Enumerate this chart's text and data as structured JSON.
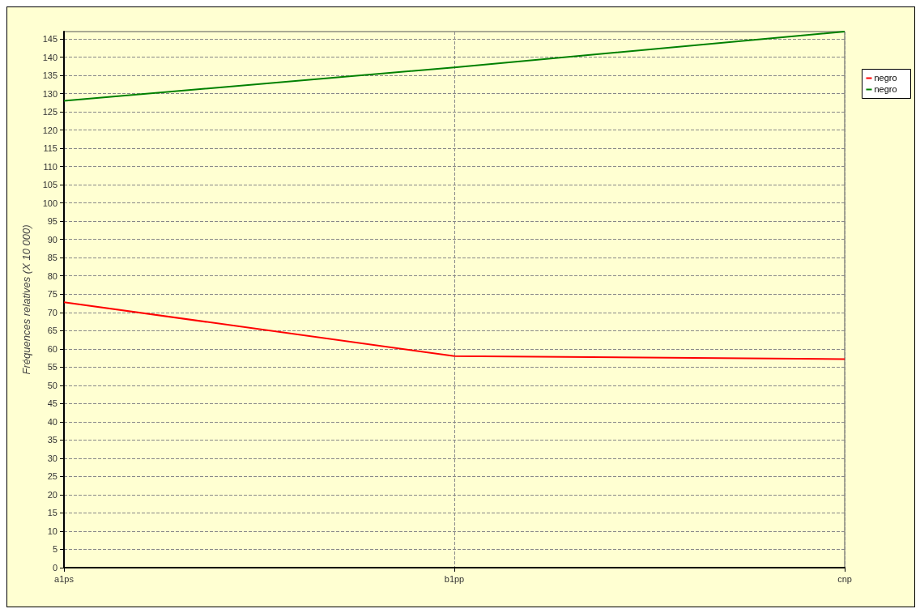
{
  "chart_data": {
    "type": "line",
    "ylabel": "Fréquences relatives (X 10 000)",
    "categories": [
      "a1ps",
      "b1pp",
      "cnp"
    ],
    "series": [
      {
        "name": "negro",
        "color": "#ff0000",
        "values": [
          72.8,
          58,
          57.2
        ]
      },
      {
        "name": "negro",
        "color": "#008000",
        "values": [
          128,
          137.2,
          147
        ]
      }
    ],
    "ylim": [
      0,
      147
    ],
    "yticks": [
      0,
      5,
      10,
      15,
      20,
      25,
      30,
      35,
      40,
      45,
      50,
      55,
      60,
      65,
      70,
      75,
      80,
      85,
      90,
      95,
      100,
      105,
      110,
      115,
      120,
      125,
      130,
      135,
      140,
      145
    ],
    "grid": true,
    "legend": "top right",
    "marker": "none",
    "line_style": "solid"
  }
}
